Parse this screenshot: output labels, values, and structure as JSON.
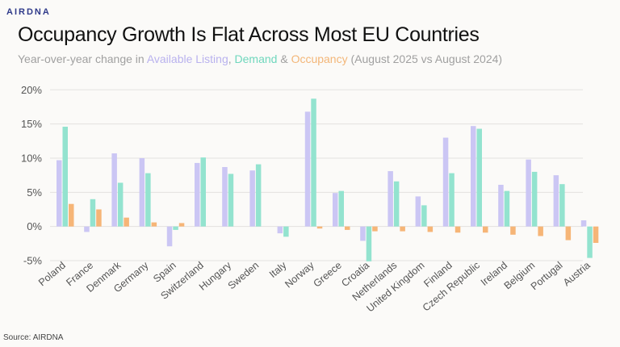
{
  "brand": "AIRDNA",
  "source": "Source: AIRDNA",
  "chart_data": {
    "type": "bar",
    "title": "Occupancy Growth Is Flat Across Most EU Countries",
    "subtitle": {
      "prefix": "Year-over-year change in ",
      "s1": "Available Listing",
      "sep1": ", ",
      "s2": "Demand",
      "sep2": " & ",
      "s3": "Occupancy",
      "suffix": " (August 2025 vs August 2024)"
    },
    "xlabel": "",
    "ylabel": "",
    "ylim": [
      -5,
      20
    ],
    "yticks": [
      -5,
      0,
      5,
      10,
      15,
      20
    ],
    "ytick_labels": [
      "-5%",
      "0%",
      "5%",
      "10%",
      "15%",
      "20%"
    ],
    "grid": true,
    "legend": "in-subtitle",
    "categories": [
      "Poland",
      "France",
      "Denmark",
      "Germany",
      "Spain",
      "Switzerland",
      "Hungary",
      "Sweden",
      "Italy",
      "Norway",
      "Greece",
      "Croatia",
      "Netherlands",
      "United Kingdom",
      "Finland",
      "Czech Republic",
      "Ireland",
      "Belgium",
      "Portugal",
      "Austria"
    ],
    "series": [
      {
        "name": "Available Listing",
        "color": "#cbc6f4",
        "values": [
          9.7,
          -0.8,
          10.7,
          10.0,
          -2.9,
          9.3,
          8.7,
          8.2,
          -1.0,
          16.8,
          4.9,
          -2.1,
          8.1,
          4.4,
          13.0,
          14.7,
          6.1,
          9.8,
          7.5,
          0.9
        ]
      },
      {
        "name": "Demand",
        "color": "#93e3cf",
        "values": [
          14.6,
          4.0,
          6.4,
          7.8,
          -0.5,
          10.1,
          7.7,
          9.1,
          -1.5,
          18.7,
          5.2,
          -5.1,
          6.6,
          3.1,
          7.8,
          14.3,
          5.2,
          8.0,
          6.2,
          -4.6
        ]
      },
      {
        "name": "Occupancy",
        "color": "#f6b577",
        "values": [
          3.3,
          2.5,
          1.3,
          0.6,
          0.5,
          0.0,
          0.0,
          0.0,
          0.0,
          -0.3,
          -0.5,
          -0.7,
          -0.7,
          -0.8,
          -0.9,
          -0.9,
          -1.2,
          -1.4,
          -2.0,
          -2.4
        ]
      }
    ]
  }
}
